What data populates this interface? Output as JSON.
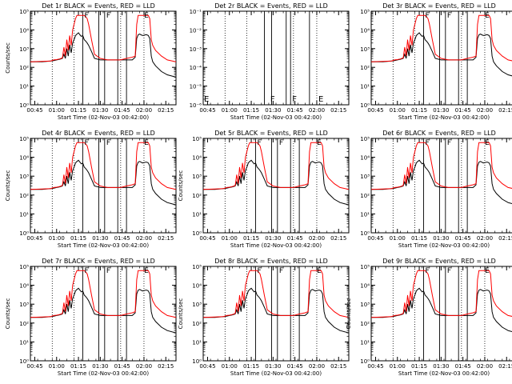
{
  "figure": {
    "x_tick_labels": [
      "00:45",
      "01:00",
      "01:15",
      "01:30",
      "01:45",
      "02:00",
      "02:15"
    ],
    "y_tick_labels": [
      "10⁰",
      "10¹",
      "10²",
      "10³",
      "10⁴",
      "10⁵"
    ],
    "y_tick_labels_det2": [
      "10⁻⁶",
      "10⁻⁵",
      "10⁻⁴",
      "10⁻³",
      "10⁻²",
      "10⁻¹"
    ]
  },
  "chart_data": [
    {
      "type": "line",
      "title": "Det 1r BLACK = Events, RED = LLD",
      "xlabel": "Start Time (02-Nov-03 00:42:00)",
      "ylabel": "Counts/sec",
      "yscale": "log",
      "ylim": [
        1,
        100000
      ],
      "xlim": [
        "00:42",
        "02:22"
      ],
      "dotted_vlines": [
        "00:57",
        "01:12",
        "01:44",
        "02:00"
      ],
      "solid_vlines": [
        "01:18",
        "01:29",
        "01:33",
        "01:42",
        "01:48"
      ],
      "markers": [
        {
          "label": "F",
          "x": "01:18"
        },
        {
          "label": "F",
          "x": "01:33"
        },
        {
          "label": "E",
          "x": "01:59"
        }
      ],
      "series": [
        {
          "name": "Events",
          "color": "#000000"
        },
        {
          "name": "LLD",
          "color": "#ff0000"
        }
      ]
    },
    {
      "type": "line",
      "title": "Det 2r BLACK = Events, RED = LLD",
      "xlabel": "Start Time (02-Nov-03 00:42:00)",
      "ylabel": "",
      "yscale": "log",
      "ylim": [
        1e-06,
        0.1
      ],
      "xlim": [
        "00:42",
        "02:22"
      ],
      "dotted_vlines": [
        "00:57",
        "01:12",
        "01:44",
        "02:00"
      ],
      "solid_vlines": [
        "01:24",
        "01:29",
        "01:39",
        "01:42",
        "01:55"
      ],
      "markers": [
        {
          "label": "F",
          "x": "01:27"
        },
        {
          "label": "F",
          "x": "01:42"
        },
        {
          "label": "E",
          "x": "02:00"
        }
      ],
      "legend_extra": "E",
      "series": []
    },
    {
      "type": "line",
      "title": "Det 3r BLACK = Events, RED = LLD",
      "xlabel": "",
      "ylabel": "",
      "yscale": "log",
      "ylim": [
        1,
        100000
      ],
      "xlim": [
        "00:42",
        "02:22"
      ],
      "dotted_vlines": [
        "00:57",
        "01:12",
        "01:44",
        "02:00"
      ],
      "solid_vlines": [
        "01:18",
        "01:29",
        "01:33",
        "01:42",
        "01:48"
      ],
      "markers": [
        {
          "label": "F",
          "x": "01:18"
        },
        {
          "label": "F",
          "x": "01:33"
        },
        {
          "label": "E",
          "x": "01:59"
        }
      ],
      "series": [
        {
          "name": "Events",
          "color": "#000000"
        },
        {
          "name": "LLD",
          "color": "#ff0000"
        }
      ]
    },
    {
      "type": "line",
      "title": "Det 4r BLACK = Events, RED = LLD",
      "xlabel": "",
      "ylabel": "Counts/sec",
      "yscale": "log",
      "ylim": [
        1,
        100000
      ],
      "xlim": [
        "00:42",
        "02:22"
      ],
      "dotted_vlines": [
        "00:57",
        "01:12",
        "01:44",
        "02:00"
      ],
      "solid_vlines": [
        "01:18",
        "01:29",
        "01:33",
        "01:42",
        "01:48"
      ],
      "markers": [
        {
          "label": "F",
          "x": "01:18"
        },
        {
          "label": "F",
          "x": "01:33"
        },
        {
          "label": "E",
          "x": "01:59"
        }
      ],
      "series": [
        {
          "name": "Events",
          "color": "#000000"
        },
        {
          "name": "LLD",
          "color": "#ff0000"
        }
      ]
    },
    {
      "type": "line",
      "title": "Det 5r BLACK = Events, RED = LLD",
      "xlabel": "Start Time (02-Nov-03 00:42:00)",
      "ylabel": "Counts/sec",
      "yscale": "log",
      "ylim": [
        1,
        100000
      ],
      "xlim": [
        "00:42",
        "02:22"
      ],
      "dotted_vlines": [
        "00:57",
        "01:12",
        "01:44",
        "02:00"
      ],
      "solid_vlines": [
        "01:18",
        "01:29",
        "01:33",
        "01:42",
        "01:48"
      ],
      "markers": [
        {
          "label": "F",
          "x": "01:18"
        },
        {
          "label": "F",
          "x": "01:33"
        },
        {
          "label": "E",
          "x": "01:59"
        }
      ],
      "series": [
        {
          "name": "Events",
          "color": "#000000"
        },
        {
          "name": "LLD",
          "color": "#ff0000"
        }
      ]
    },
    {
      "type": "line",
      "title": "Det 6r BLACK = Events, RED = LLD",
      "xlabel": "",
      "ylabel": "",
      "yscale": "log",
      "ylim": [
        1,
        100000
      ],
      "xlim": [
        "00:42",
        "02:22"
      ],
      "dotted_vlines": [
        "00:57",
        "01:12",
        "01:44",
        "02:00"
      ],
      "solid_vlines": [
        "01:18",
        "01:29",
        "01:33",
        "01:42",
        "01:48"
      ],
      "markers": [
        {
          "label": "F",
          "x": "01:18"
        },
        {
          "label": "F",
          "x": "01:33"
        },
        {
          "label": "E",
          "x": "01:59"
        }
      ],
      "series": [
        {
          "name": "Events",
          "color": "#000000"
        },
        {
          "name": "LLD",
          "color": "#ff0000"
        }
      ]
    },
    {
      "type": "line",
      "title": "Det 7r BLACK = Events, RED = LLD",
      "xlabel": "Start Time (02-Nov-03 00:42:00)",
      "ylabel": "Counts/sec",
      "yscale": "log",
      "ylim": [
        1,
        100000
      ],
      "xlim": [
        "00:42",
        "02:22"
      ],
      "dotted_vlines": [
        "00:57",
        "01:12",
        "01:44",
        "02:00"
      ],
      "solid_vlines": [
        "01:18",
        "01:29",
        "01:33",
        "01:42",
        "01:48"
      ],
      "markers": [
        {
          "label": "F",
          "x": "01:18"
        },
        {
          "label": "F",
          "x": "01:33"
        },
        {
          "label": "E",
          "x": "01:59"
        }
      ],
      "series": [
        {
          "name": "Events",
          "color": "#000000"
        },
        {
          "name": "LLD",
          "color": "#ff0000"
        }
      ]
    },
    {
      "type": "line",
      "title": "Det 8r BLACK = Events, RED = LLD",
      "xlabel": "Start Time (02-Nov-03 00:42:00)",
      "ylabel": "Counts/sec",
      "yscale": "log",
      "ylim": [
        1,
        100000
      ],
      "xlim": [
        "00:42",
        "02:22"
      ],
      "dotted_vlines": [
        "00:57",
        "01:12",
        "01:44",
        "02:00"
      ],
      "solid_vlines": [
        "01:18",
        "01:29",
        "01:33",
        "01:42",
        "01:48"
      ],
      "markers": [
        {
          "label": "F",
          "x": "01:18"
        },
        {
          "label": "F",
          "x": "01:33"
        },
        {
          "label": "E",
          "x": "01:59"
        }
      ],
      "series": [
        {
          "name": "Events",
          "color": "#000000"
        },
        {
          "name": "LLD",
          "color": "#ff0000"
        }
      ]
    },
    {
      "type": "line",
      "title": "Det 9r BLACK = Events, RED = LLD",
      "xlabel": "Start Time (02-Nov-03 00:42:00)",
      "ylabel": "Counts/sec",
      "yscale": "log",
      "ylim": [
        1,
        100000
      ],
      "xlim": [
        "00:42",
        "02:22"
      ],
      "dotted_vlines": [
        "00:57",
        "01:12",
        "01:44",
        "02:00"
      ],
      "solid_vlines": [
        "01:18",
        "01:29",
        "01:33",
        "01:42",
        "01:48"
      ],
      "markers": [
        {
          "label": "F",
          "x": "01:18"
        },
        {
          "label": "F",
          "x": "01:33"
        },
        {
          "label": "E",
          "x": "01:59"
        }
      ],
      "series": [
        {
          "name": "Events",
          "color": "#000000"
        },
        {
          "name": "LLD",
          "color": "#ff0000"
        }
      ]
    }
  ],
  "profiles": {
    "times": [
      "00:42",
      "00:50",
      "00:56",
      "00:58",
      "01:00",
      "01:02",
      "01:04",
      "01:05",
      "01:06",
      "01:07",
      "01:08",
      "01:09",
      "01:10",
      "01:11",
      "01:12",
      "01:13",
      "01:14",
      "01:15",
      "01:16",
      "01:17",
      "01:18",
      "01:19",
      "01:20",
      "01:21",
      "01:22",
      "01:24",
      "01:26",
      "01:30",
      "01:35",
      "01:40",
      "01:44",
      "01:48",
      "01:52",
      "01:54",
      "01:55",
      "01:56",
      "01:57",
      "01:58",
      "01:59",
      "02:00",
      "02:01",
      "02:02",
      "02:03",
      "02:04",
      "02:05",
      "02:06",
      "02:08",
      "02:12",
      "02:16",
      "02:22"
    ],
    "events": [
      200,
      200,
      220,
      230,
      250,
      270,
      300,
      500,
      300,
      1000,
      400,
      1600,
      600,
      2000,
      3000,
      5000,
      6000,
      7000,
      5500,
      4500,
      5000,
      3000,
      2500,
      2000,
      1500,
      700,
      300,
      250,
      250,
      250,
      250,
      250,
      250,
      350,
      3500,
      5500,
      6000,
      5500,
      5000,
      5200,
      5500,
      5500,
      5000,
      3500,
      400,
      200,
      120,
      60,
      40,
      30
    ],
    "lld": [
      200,
      210,
      220,
      250,
      260,
      280,
      320,
      1200,
      400,
      3000,
      800,
      5000,
      1500,
      10000,
      20000,
      40000,
      60000,
      60000,
      60000,
      60000,
      60000,
      60000,
      50000,
      40000,
      20000,
      3000,
      500,
      300,
      250,
      250,
      250,
      300,
      350,
      400,
      20000,
      60000,
      60000,
      60000,
      60000,
      60000,
      60000,
      60000,
      60000,
      40000,
      3000,
      1500,
      800,
      400,
      250,
      200
    ]
  }
}
